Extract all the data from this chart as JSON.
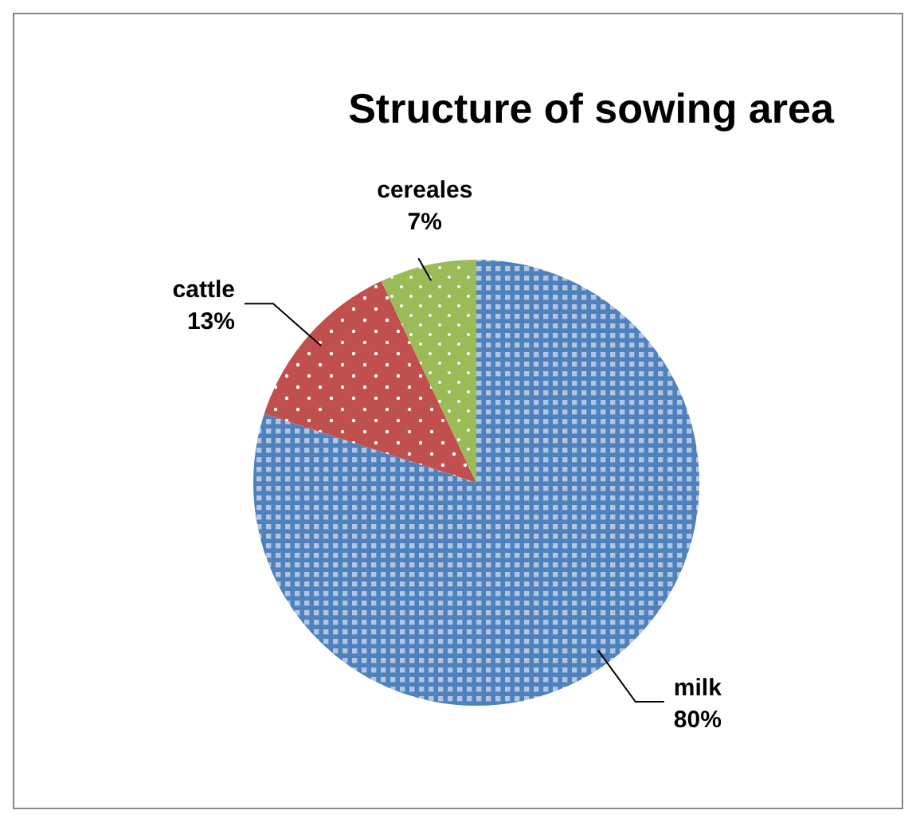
{
  "chart_data": {
    "type": "pie",
    "title": "Structure of sowing area",
    "categories": [
      "milk",
      "cattle",
      "cereales"
    ],
    "values": [
      80,
      13,
      7
    ],
    "colors": [
      "#4f81bd",
      "#c0504d",
      "#9bbb59"
    ],
    "value_labels": [
      "80%",
      "13%",
      "7%"
    ]
  }
}
